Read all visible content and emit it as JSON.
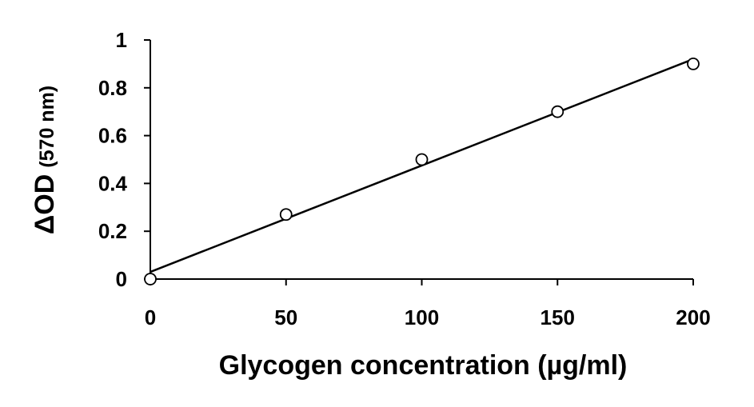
{
  "chart_data": {
    "type": "scatter",
    "title": "",
    "xlabel": "Glycogen concentration (µg/ml)",
    "ylabel_main": "ΔOD",
    "ylabel_unit": "(570 nm)",
    "xlim": [
      0,
      200
    ],
    "ylim": [
      0,
      1
    ],
    "x_ticks": [
      0,
      50,
      100,
      150,
      200
    ],
    "y_ticks": [
      0,
      0.2,
      0.4,
      0.6,
      0.8,
      1
    ],
    "x_tick_labels": [
      "0",
      "50",
      "100",
      "150",
      "200"
    ],
    "y_tick_labels": [
      "0",
      "0.2",
      "0.4",
      "0.6",
      "0.8",
      "1"
    ],
    "grid": false,
    "legend": "none",
    "series": [
      {
        "x": [
          0,
          50,
          100,
          150,
          200
        ],
        "y": [
          0.0,
          0.27,
          0.5,
          0.7,
          0.9
        ],
        "marker": "open-circle"
      }
    ],
    "trendline": {
      "type": "linear",
      "x": [
        0,
        200
      ],
      "y": [
        0.03,
        0.92
      ]
    },
    "colors": {
      "axis": "#000000",
      "marker_fill": "#ffffff",
      "marker_stroke": "#000000",
      "line": "#000000"
    }
  }
}
